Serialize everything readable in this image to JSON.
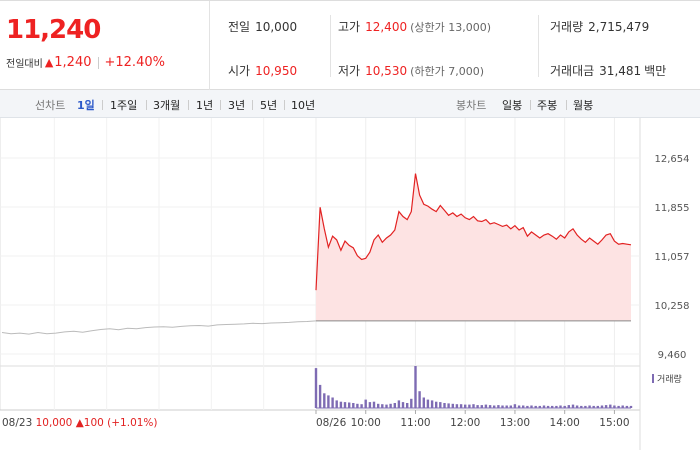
{
  "summary": {
    "price": "11,240",
    "change_label": "전일대비",
    "change_arrow": "▲",
    "change_value": "1,240",
    "change_pct": "+12.40%",
    "stats": {
      "prev_close_label": "전일",
      "prev_close": "10,000",
      "open_label": "시가",
      "open": "10,950",
      "high_label": "고가",
      "high": "12,400",
      "upper_limit": "(상한가 13,000)",
      "low_label": "저가",
      "low": "10,530",
      "lower_limit": "(하한가 7,000)",
      "volume_label": "거래량",
      "volume": "2,715,479",
      "value_label": "거래대금",
      "value": "31,481",
      "value_unit": "백만"
    }
  },
  "tabs": {
    "line_label": "선차트",
    "line_periods": [
      "1일",
      "1주일",
      "3개월",
      "1년",
      "3년",
      "5년",
      "10년"
    ],
    "active_period": "1일",
    "candle_label": "봉차트",
    "candle_periods": [
      "일봉",
      "주봉",
      "월봉"
    ]
  },
  "colors": {
    "up": "#e22222",
    "prev": "#bbbbbb",
    "volume": "#7e6bb3",
    "active_tab": "#2b58c9"
  },
  "chart_data": {
    "type": "line",
    "ylim": [
      9460,
      12654
    ],
    "y_ticks": [
      "12,654",
      "11,855",
      "11,057",
      "10,258",
      "9,460"
    ],
    "x_tick_labels": [
      "08/26",
      "10:00",
      "11:00",
      "12:00",
      "13:00",
      "14:00",
      "15:00"
    ],
    "prev_day": {
      "date_label": "08/23",
      "close": "10,000",
      "arrow": "▲",
      "change": "100",
      "change_pct": "(+1.01%)",
      "values": [
        9810,
        9790,
        9800,
        9785,
        9810,
        9790,
        9800,
        9820,
        9830,
        9815,
        9840,
        9860,
        9870,
        9855,
        9880,
        9870,
        9890,
        9900,
        9905,
        9895,
        9910,
        9920,
        9925,
        9915,
        9935,
        9940,
        9945,
        9950,
        9960,
        9955,
        9965,
        9970,
        9975,
        9985,
        9990,
        10000
      ]
    },
    "reference_price": 10000,
    "intraday_times": [
      "09:00",
      "09:05",
      "09:10",
      "09:15",
      "09:20",
      "09:25",
      "09:30",
      "09:35",
      "09:40",
      "09:45",
      "09:50",
      "09:55",
      "10:00",
      "10:05",
      "10:10",
      "10:15",
      "10:20",
      "10:25",
      "10:30",
      "10:35",
      "10:40",
      "10:45",
      "10:50",
      "10:55",
      "11:00",
      "11:05",
      "11:10",
      "11:15",
      "11:20",
      "11:25",
      "11:30",
      "11:35",
      "11:40",
      "11:45",
      "11:50",
      "11:55",
      "12:00",
      "12:05",
      "12:10",
      "12:15",
      "12:20",
      "12:25",
      "12:30",
      "12:35",
      "12:40",
      "12:45",
      "12:50",
      "12:55",
      "13:00",
      "13:05",
      "13:10",
      "13:15",
      "13:20",
      "13:25",
      "13:30",
      "13:35",
      "13:40",
      "13:45",
      "13:50",
      "13:55",
      "14:00",
      "14:05",
      "14:10",
      "14:15",
      "14:20",
      "14:25",
      "14:30",
      "14:35",
      "14:40",
      "14:45",
      "14:50",
      "14:55",
      "15:00",
      "15:05",
      "15:10",
      "15:15",
      "15:20"
    ],
    "intraday_values": [
      10500,
      11850,
      11500,
      11200,
      11380,
      11320,
      11150,
      11300,
      11230,
      11190,
      11060,
      11000,
      11020,
      11120,
      11320,
      11400,
      11280,
      11350,
      11400,
      11480,
      11780,
      11700,
      11650,
      11780,
      12400,
      12050,
      11900,
      11870,
      11820,
      11780,
      11880,
      11800,
      11720,
      11760,
      11700,
      11740,
      11680,
      11650,
      11700,
      11630,
      11620,
      11650,
      11580,
      11600,
      11570,
      11540,
      11560,
      11500,
      11550,
      11480,
      11520,
      11380,
      11450,
      11400,
      11350,
      11400,
      11420,
      11380,
      11330,
      11400,
      11350,
      11450,
      11500,
      11400,
      11330,
      11280,
      11350,
      11300,
      11250,
      11320,
      11400,
      11420,
      11300,
      11250,
      11260,
      11250,
      11240
    ],
    "volume_label": "거래량",
    "volume": [
      95,
      55,
      35,
      30,
      25,
      18,
      15,
      14,
      13,
      12,
      10,
      9,
      20,
      14,
      15,
      10,
      9,
      8,
      10,
      12,
      18,
      14,
      12,
      22,
      100,
      40,
      25,
      20,
      18,
      15,
      14,
      12,
      11,
      10,
      9,
      9,
      8,
      8,
      9,
      7,
      7,
      8,
      7,
      6,
      7,
      6,
      6,
      6,
      9,
      6,
      6,
      5,
      6,
      5,
      5,
      6,
      5,
      5,
      5,
      6,
      5,
      7,
      8,
      6,
      5,
      5,
      6,
      5,
      5,
      6,
      7,
      8,
      6,
      5,
      6,
      5,
      5
    ]
  }
}
